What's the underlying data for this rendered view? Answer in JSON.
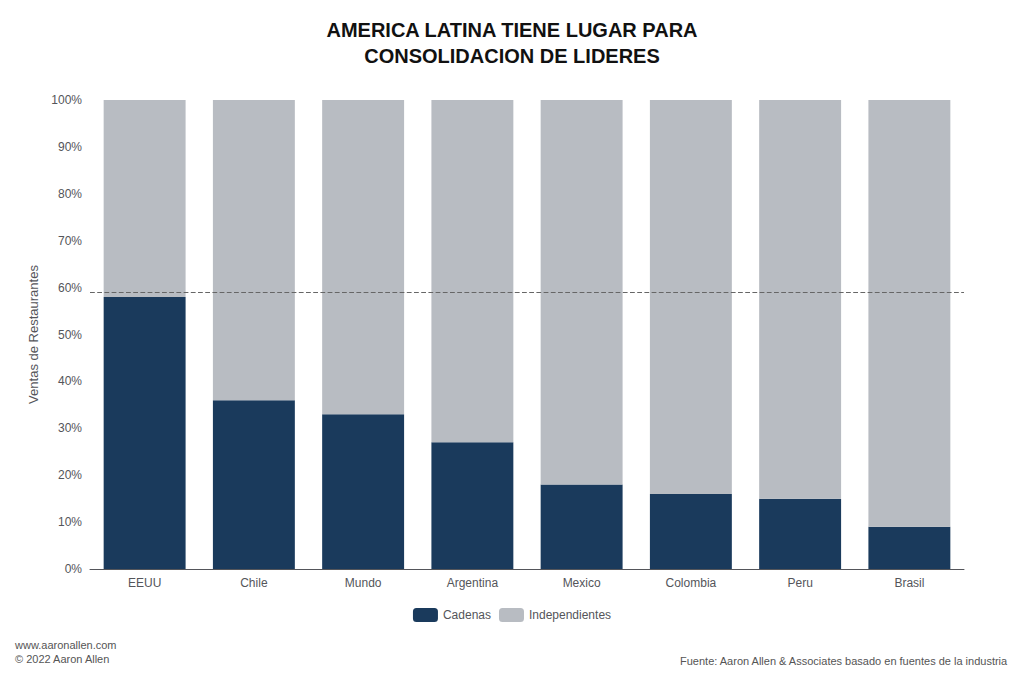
{
  "chart_data": {
    "type": "bar",
    "title": "AMERICA LATINA TIENE LUGAR PARA\nCONSOLIDACION DE LIDERES",
    "categories": [
      "EEUU",
      "Chile",
      "Mundo",
      "Argentina",
      "Mexico",
      "Colombia",
      "Peru",
      "Brasil"
    ],
    "series": [
      {
        "name": "Cadenas",
        "color": "#1a3a5c",
        "values": [
          58,
          36,
          33,
          27,
          18,
          16,
          15,
          9
        ]
      },
      {
        "name": "Independientes",
        "color": "#b8bcc2",
        "values": [
          42,
          64,
          67,
          73,
          82,
          84,
          85,
          91
        ]
      }
    ],
    "ylabel": "Ventas de Restaurantes",
    "ylim": [
      0,
      100
    ],
    "yticks": [
      {
        "value": 0,
        "label": "0%"
      },
      {
        "value": 10,
        "label": "10%"
      },
      {
        "value": 20,
        "label": "20%"
      },
      {
        "value": 30,
        "label": "30%"
      },
      {
        "value": 40,
        "label": "40%"
      },
      {
        "value": 50,
        "label": "50%"
      },
      {
        "value": 60,
        "label": "60%"
      },
      {
        "value": 70,
        "label": "70%"
      },
      {
        "value": 80,
        "label": "80%"
      },
      {
        "value": 90,
        "label": "90%"
      },
      {
        "value": 100,
        "label": "100%"
      }
    ],
    "stacked": true,
    "grid": false,
    "legend": "bottom",
    "reference_line": 59,
    "footnotes": [
      "www.aaronallen.com\n© 2022 Aaron Allen",
      "Fuente: Aaron Allen & Associates basado en fuentes de la industria"
    ]
  }
}
